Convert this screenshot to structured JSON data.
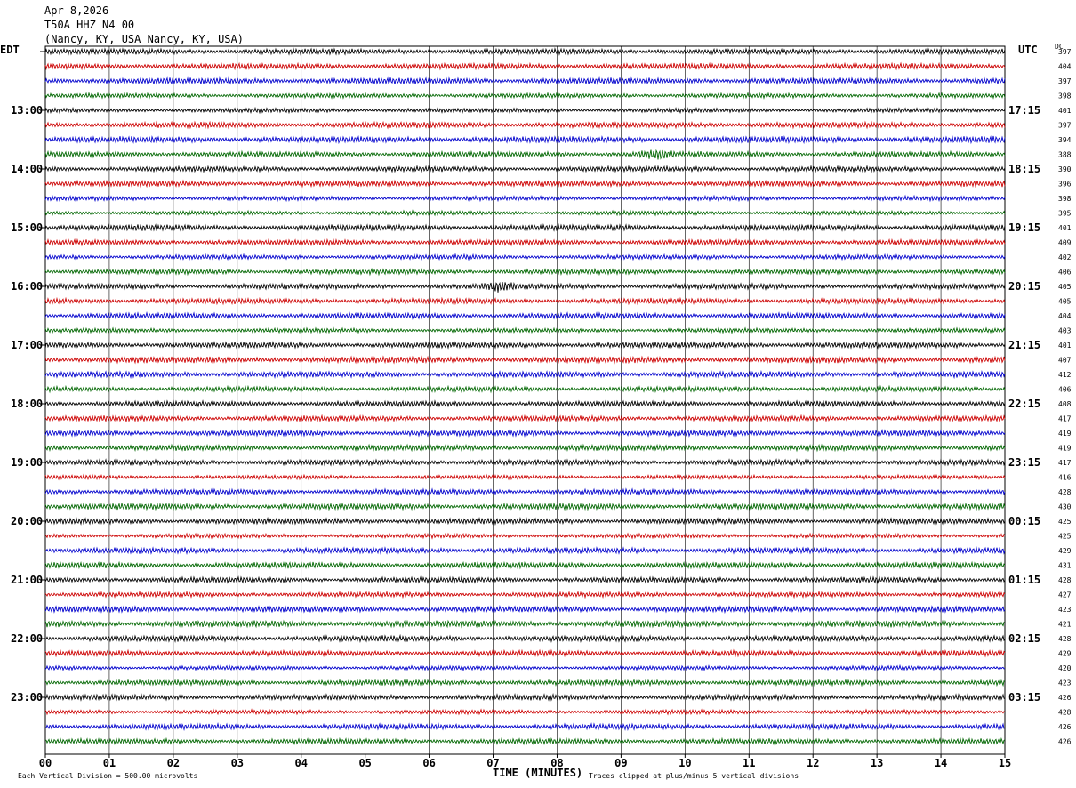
{
  "header": {
    "date": "Apr 8,2026",
    "station": "T50A HHZ N4 00",
    "location": "(Nancy, KY, USA Nancy, KY, USA)"
  },
  "labels": {
    "left_zone": "EDT",
    "right_zone": "UTC",
    "dc": "DC",
    "xaxis_title": "TIME (MINUTES)",
    "scale_note": "Each Vertical Division =  500.00 microvolts",
    "clip_note": "Traces clipped at plus/minus 5 vertical divisions"
  },
  "colors": {
    "cycle": [
      "#000000",
      "#cc0000",
      "#0000cc",
      "#006600"
    ],
    "grid": "#000000"
  },
  "chart_data": {
    "type": "line",
    "title": "T50A HHZ N4 00",
    "xlabel": "TIME (MINUTES)",
    "xlim": [
      0,
      15
    ],
    "x_ticks": [
      "00",
      "01",
      "02",
      "03",
      "04",
      "05",
      "06",
      "07",
      "08",
      "09",
      "10",
      "11",
      "12",
      "13",
      "14",
      "15"
    ],
    "traces_per_hour": 4,
    "left_hour_labels": [
      "13:00",
      "14:00",
      "15:00",
      "16:00",
      "17:00",
      "18:00",
      "19:00",
      "20:00",
      "21:00",
      "22:00",
      "23:00"
    ],
    "right_hour_labels": [
      "17:15",
      "18:15",
      "19:15",
      "20:15",
      "21:15",
      "22:15",
      "23:15",
      "00:15",
      "01:15",
      "02:15",
      "03:15"
    ],
    "dc_offsets": [
      397,
      404,
      397,
      398,
      401,
      397,
      394,
      388,
      390,
      396,
      398,
      395,
      401,
      409,
      402,
      406,
      405,
      405,
      404,
      403,
      401,
      407,
      412,
      406,
      408,
      417,
      419,
      419,
      417,
      416,
      428,
      430,
      425,
      425,
      429,
      431,
      428,
      427,
      423,
      421,
      428,
      429,
      420,
      423,
      426,
      428,
      426,
      426
    ],
    "events": [
      {
        "trace": 7,
        "minute": 9.55,
        "label": ""
      },
      {
        "trace": 16,
        "minute": 7.1,
        "label": ""
      }
    ]
  }
}
